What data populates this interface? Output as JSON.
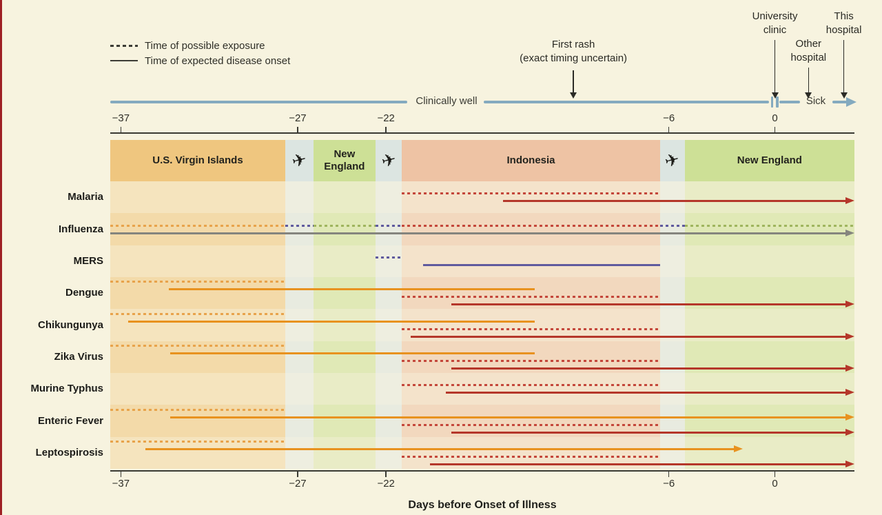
{
  "legend": {
    "items": [
      {
        "id": "exposure",
        "style": "dashed",
        "label": "Time of possible exposure"
      },
      {
        "id": "onset",
        "style": "solid",
        "label": "Time of expected disease onset"
      }
    ]
  },
  "timeline": {
    "well_label": "Clinically well",
    "sick_label": "Sick",
    "color": "#84aabf"
  },
  "annotations": [
    {
      "id": "first-rash",
      "lines": [
        "First rash",
        "(exact timing uncertain)"
      ],
      "day": -11.4
    },
    {
      "id": "university-clinic",
      "lines": [
        "University",
        "clinic"
      ],
      "day": 0
    },
    {
      "id": "other-hospital",
      "lines": [
        "Other",
        "hospital"
      ],
      "day": 1.9
    },
    {
      "id": "this-hospital",
      "lines": [
        "This",
        "hospital"
      ],
      "day": 3.9
    }
  ],
  "colors": {
    "background": "#f7f3df",
    "figure_left_rule": "#9e2024",
    "timeline_blue": "#84aabf",
    "axis": "#3a3a33",
    "red_solid": "#b5372a",
    "red_dashed": "#c4473b",
    "orange_solid": "#e8921f",
    "orange_dashed": "#e8a34b",
    "purple": "#5f5a9e",
    "gray": "#85857e",
    "green_dashed": "#9fb55e"
  },
  "chart_data": {
    "type": "timeline",
    "xlabel": "Days before Onset of Illness",
    "x_domain": [
      -37.6,
      4.5
    ],
    "x_ticks": [
      -37,
      -27,
      -22,
      -6,
      0
    ],
    "grid": false,
    "regions": [
      {
        "name": "U.S. Virgin Islands",
        "flight": false,
        "start": -37.6,
        "end": -27.7,
        "color": "#efc67f"
      },
      {
        "name": "flight",
        "flight": true,
        "start": -27.7,
        "end": -26.1,
        "color": "#dce5e1"
      },
      {
        "name": "New England",
        "flight": false,
        "start": -26.1,
        "end": -22.6,
        "color": "#cde096"
      },
      {
        "name": "flight",
        "flight": true,
        "start": -22.6,
        "end": -21.1,
        "color": "#dce5e1"
      },
      {
        "name": "Indonesia",
        "flight": false,
        "start": -21.1,
        "end": -6.5,
        "color": "#eec3a4"
      },
      {
        "name": "flight",
        "flight": true,
        "start": -6.5,
        "end": -5.1,
        "color": "#dce5e1"
      },
      {
        "name": "New England",
        "flight": false,
        "start": -5.1,
        "end": 4.5,
        "color": "#cde096"
      }
    ],
    "diseases": [
      {
        "name": "Malaria",
        "lines": [
          {
            "kind": "possible exposure",
            "style": "dashed",
            "color": "#c4473b",
            "start": -21.1,
            "end": -6.5
          },
          {
            "kind": "expected onset",
            "style": "solid",
            "color": "#b5372a",
            "start": -15.4,
            "end": 4.5,
            "arrow": true
          }
        ]
      },
      {
        "name": "Influenza",
        "lines": [
          {
            "kind": "possible exposure",
            "style": "dashed",
            "segments": [
              {
                "start": -37.6,
                "end": -27.7,
                "color": "#e8a34b"
              },
              {
                "start": -27.7,
                "end": -26.1,
                "color": "#5f5a9e"
              },
              {
                "start": -26.1,
                "end": -22.6,
                "color": "#9fb55e"
              },
              {
                "start": -22.6,
                "end": -21.1,
                "color": "#5f5a9e"
              },
              {
                "start": -21.1,
                "end": -6.5,
                "color": "#c4473b"
              },
              {
                "start": -6.5,
                "end": -5.1,
                "color": "#5f5a9e"
              },
              {
                "start": -5.1,
                "end": 4.5,
                "color": "#9fb55e"
              }
            ]
          },
          {
            "kind": "expected onset",
            "style": "solid",
            "color": "#85857e",
            "start": -37.6,
            "end": 4.5,
            "arrow": true
          }
        ]
      },
      {
        "name": "MERS",
        "lines": [
          {
            "kind": "possible exposure",
            "style": "dashed",
            "color": "#5f5a9e",
            "start": -22.6,
            "end": -21.1
          },
          {
            "kind": "expected onset",
            "style": "solid",
            "color": "#5f5a9e",
            "start": -19.9,
            "end": -6.5
          }
        ]
      },
      {
        "name": "Dengue",
        "lines": [
          {
            "kind": "possible exposure",
            "style": "dashed",
            "color": "#e8a34b",
            "start": -37.6,
            "end": -27.7
          },
          {
            "kind": "expected onset",
            "style": "solid",
            "color": "#e8921f",
            "start": -34.3,
            "end": -13.6
          },
          {
            "kind": "possible exposure",
            "style": "dashed",
            "color": "#c4473b",
            "start": -21.1,
            "end": -6.5
          },
          {
            "kind": "expected onset",
            "style": "solid",
            "color": "#b5372a",
            "start": -18.3,
            "end": 4.5,
            "arrow": true
          }
        ]
      },
      {
        "name": "Chikungunya",
        "lines": [
          {
            "kind": "possible exposure",
            "style": "dashed",
            "color": "#e8a34b",
            "start": -37.6,
            "end": -27.7
          },
          {
            "kind": "expected onset",
            "style": "solid",
            "color": "#e8921f",
            "start": -36.6,
            "end": -13.6
          },
          {
            "kind": "possible exposure",
            "style": "dashed",
            "color": "#c4473b",
            "start": -21.1,
            "end": -6.5
          },
          {
            "kind": "expected onset",
            "style": "solid",
            "color": "#b5372a",
            "start": -20.6,
            "end": 4.5,
            "arrow": true
          }
        ]
      },
      {
        "name": "Zika Virus",
        "lines": [
          {
            "kind": "possible exposure",
            "style": "dashed",
            "color": "#e8a34b",
            "start": -37.6,
            "end": -27.7
          },
          {
            "kind": "expected onset",
            "style": "solid",
            "color": "#e8921f",
            "start": -34.2,
            "end": -13.6
          },
          {
            "kind": "possible exposure",
            "style": "dashed",
            "color": "#c4473b",
            "start": -21.1,
            "end": -6.5
          },
          {
            "kind": "expected onset",
            "style": "solid",
            "color": "#b5372a",
            "start": -18.3,
            "end": 4.5,
            "arrow": true
          }
        ]
      },
      {
        "name": "Murine Typhus",
        "lines": [
          {
            "kind": "possible exposure",
            "style": "dashed",
            "color": "#c4473b",
            "start": -21.1,
            "end": -6.5
          },
          {
            "kind": "expected onset",
            "style": "solid",
            "color": "#b5372a",
            "start": -18.6,
            "end": 4.5,
            "arrow": true
          }
        ]
      },
      {
        "name": "Enteric Fever",
        "lines": [
          {
            "kind": "possible exposure",
            "style": "dashed",
            "color": "#e8a34b",
            "start": -37.6,
            "end": -27.7
          },
          {
            "kind": "expected onset",
            "style": "solid",
            "color": "#e8921f",
            "start": -34.2,
            "end": 4.5,
            "arrow": true
          },
          {
            "kind": "possible exposure",
            "style": "dashed",
            "color": "#c4473b",
            "start": -21.1,
            "end": -6.5
          },
          {
            "kind": "expected onset",
            "style": "solid",
            "color": "#b5372a",
            "start": -18.3,
            "end": 4.5,
            "arrow": true
          }
        ]
      },
      {
        "name": "Leptospirosis",
        "lines": [
          {
            "kind": "possible exposure",
            "style": "dashed",
            "color": "#e8a34b",
            "start": -37.6,
            "end": -27.7
          },
          {
            "kind": "expected onset",
            "style": "solid",
            "color": "#e8921f",
            "start": -35.6,
            "end": -1.8,
            "arrow": true
          },
          {
            "kind": "possible exposure",
            "style": "dashed",
            "color": "#c4473b",
            "start": -21.1,
            "end": -6.5
          },
          {
            "kind": "expected onset",
            "style": "solid",
            "color": "#b5372a",
            "start": -19.5,
            "end": 4.5,
            "arrow": true
          }
        ]
      }
    ]
  }
}
